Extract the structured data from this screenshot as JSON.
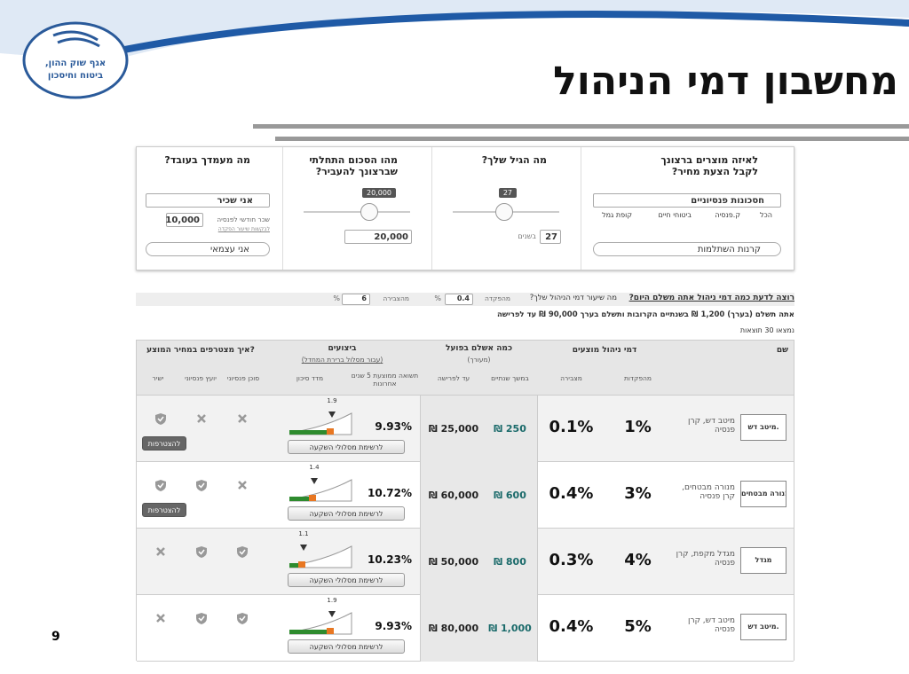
{
  "header": {
    "logo_line1": "אגף שוק ההון,",
    "logo_line2": "ביטוח וחיסכון",
    "title": "מחשבון דמי הניהול"
  },
  "page_number": "9",
  "questions": [
    {
      "title": "לאיזה מוצרים ברצונך לקבל הצעת מחיר?",
      "select": "חסכונות פנסיוניים",
      "checkboxes": [
        "הכל",
        "ק.פנסיה",
        "ביטוחי חיים",
        "קופת גמל"
      ],
      "radio": "קרנות השתלמות"
    },
    {
      "title": "מה הגיל שלך?",
      "slider_value": "27",
      "input": "27",
      "unit": "בשנים"
    },
    {
      "title": "מהו הסכום התחלתי שברצונך להעביר?",
      "slider_value": "20,000",
      "input": "20,000"
    },
    {
      "title": "מה מעמדך בעובד?",
      "option1": "אני שכיר",
      "salary_label": "שכר חודשי לפנסיה",
      "salary": "10,000",
      "salary_link": "לבקשות שיעור הפקדה",
      "option2": "אני עצמאי"
    }
  ],
  "fee_strip": {
    "link": "רוצה לדעת כמה דמי ניהול אתה משלם היום?",
    "question": "מה שיעור דמי הניהול שלך?",
    "deposit_label": "מהפקדה",
    "deposit": "0.4",
    "accum_label": "מהצבירה",
    "accum": "6",
    "percent": "%"
  },
  "summary": "אתה תשלם (בערך) 1,200 ₪ בשנתיים הקרובות ותשלם בערך 90,000 ₪ עד לפרישה",
  "results_count": "נמצאו 30 תוצאות",
  "table": {
    "headers": {
      "name": "שם",
      "fees": "דמי ניהול מוצעים",
      "fees_deposit": "מהפקדות",
      "fees_accum": "מצבירה",
      "cost": "כמה אשלם בפועל",
      "cost_note": "(מעורך)",
      "cost_two_years": "במשך שנתיים",
      "cost_retire": "עד לפרישה",
      "performance": "ביצועים",
      "performance_note": "(עבור מסלול ברירת המחדל)",
      "avg_return": "תשואה ממוצעת 5 שנים אחרונות",
      "risk": "מדד סיכון",
      "join": "איך מצטרפים במחיר המוצע?",
      "agent": "סוכן פנסיוני",
      "advisor": "יועץ פנסיוני",
      "direct": "ישיר"
    },
    "rows": [
      {
        "logo": "מיטב דש.",
        "name": "מיטב דש, קרן פנסיה",
        "deposit_fee": "1%",
        "accum_fee": "0.1%",
        "two_years": "250 ₪",
        "retire": "25,000 ₪",
        "return": "9.93%",
        "risk": 1.9,
        "tracks_button": "לרשימת מסלולי השקעה",
        "channels": [
          false,
          false,
          true
        ],
        "join_button": "להצטרפות"
      },
      {
        "logo": "מנורה מבטחים",
        "name": "מנורה מבטחים, קרן פנסיה",
        "deposit_fee": "3%",
        "accum_fee": "0.4%",
        "two_years": "600 ₪",
        "retire": "60,000 ₪",
        "return": "10.72%",
        "risk": 1.4,
        "tracks_button": "לרשימת מסלולי השקעה",
        "channels": [
          false,
          true,
          true
        ],
        "join_button": "להצטרפות"
      },
      {
        "logo": "מגדל",
        "name": "מגדל מקפת, קרן פנסיה",
        "deposit_fee": "4%",
        "accum_fee": "0.3%",
        "two_years": "800 ₪",
        "retire": "50,000 ₪",
        "return": "10.23%",
        "risk": 1.1,
        "tracks_button": "לרשימת מסלולי השקעה",
        "channels": [
          true,
          true,
          false
        ]
      },
      {
        "logo": "מיטב דש.",
        "name": "מיטב דש, קרן פנסיה",
        "deposit_fee": "5%",
        "accum_fee": "0.4%",
        "two_years": "1,000 ₪",
        "retire": "80,000 ₪",
        "return": "9.93%",
        "risk": 1.9,
        "tracks_button": "לרשימת מסלולי השקעה",
        "channels": [
          true,
          true,
          false
        ]
      }
    ]
  }
}
